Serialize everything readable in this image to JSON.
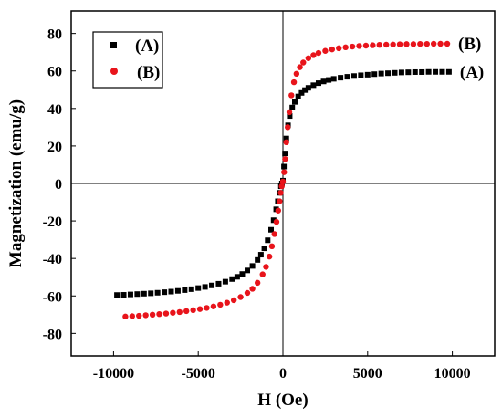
{
  "chart_data": {
    "type": "scatter",
    "xlabel": "H (Oe)",
    "ylabel": "Magnetization (emu/g)",
    "xlim": [
      -12500,
      12500
    ],
    "ylim": [
      -92,
      92
    ],
    "xticks": [
      -10000,
      -5000,
      0,
      5000,
      10000
    ],
    "yticks": [
      -80,
      -60,
      -40,
      -20,
      0,
      20,
      40,
      60,
      80
    ],
    "xtick_labels": [
      "-10000",
      "-5000",
      "0",
      "5000",
      "10000"
    ],
    "ytick_labels": [
      "-80",
      "-60",
      "-40",
      "-20",
      "0",
      "20",
      "40",
      "60",
      "80"
    ],
    "legend": {
      "placement": "top-left",
      "boxed": true
    },
    "grid": false,
    "zero_lines": true,
    "series": [
      {
        "name": "(A)",
        "color": "#000000",
        "marker": "square",
        "end_label": "(A)",
        "Ms": 59.5,
        "x": [
          -9800,
          -9400,
          -9000,
          -8600,
          -8200,
          -7800,
          -7400,
          -7000,
          -6600,
          -6200,
          -5800,
          -5400,
          -5000,
          -4600,
          -4200,
          -3800,
          -3400,
          -3000,
          -2700,
          -2400,
          -2100,
          -1800,
          -1500,
          -1300,
          -1100,
          -900,
          -700,
          -550,
          -400,
          -300,
          -200,
          -120,
          -60,
          0,
          60,
          120,
          200,
          300,
          400,
          550,
          700,
          900,
          1100,
          1300,
          1500,
          1800,
          2100,
          2400,
          2700,
          3000,
          3400,
          3800,
          4200,
          4600,
          5000,
          5400,
          5800,
          6200,
          6600,
          7000,
          7400,
          7800,
          8200,
          8600,
          9000,
          9400,
          9800
        ],
        "y": [
          -59.5,
          -59.4,
          -59.2,
          -59.0,
          -58.8,
          -58.6,
          -58.3,
          -58.0,
          -57.7,
          -57.3,
          -56.9,
          -56.4,
          -55.8,
          -55.2,
          -54.4,
          -53.5,
          -52.4,
          -51.0,
          -49.8,
          -48.3,
          -46.4,
          -44.0,
          -40.8,
          -38.0,
          -34.6,
          -30.3,
          -24.7,
          -19.6,
          -13.8,
          -9.5,
          -5.0,
          -1.5,
          0.0,
          1.5,
          9.0,
          16.0,
          24.0,
          31.0,
          36.0,
          40.5,
          43.5,
          46.4,
          48.3,
          49.8,
          51.0,
          52.4,
          53.5,
          54.4,
          55.2,
          55.8,
          56.4,
          56.9,
          57.3,
          57.7,
          58.0,
          58.3,
          58.6,
          58.8,
          59.0,
          59.2,
          59.3,
          59.4,
          59.4,
          59.5,
          59.5,
          59.5,
          59.5
        ]
      },
      {
        "name": "(B)",
        "color": "#e8141b",
        "marker": "circle",
        "end_label": "(B)",
        "Ms": 74.5,
        "x": [
          -9300,
          -8900,
          -8500,
          -8100,
          -7700,
          -7300,
          -6900,
          -6500,
          -6100,
          -5700,
          -5300,
          -4900,
          -4500,
          -4100,
          -3700,
          -3300,
          -2900,
          -2500,
          -2100,
          -1800,
          -1500,
          -1200,
          -1000,
          -800,
          -650,
          -500,
          -380,
          -280,
          -200,
          -130,
          -70,
          0,
          70,
          130,
          200,
          280,
          380,
          500,
          650,
          800,
          1000,
          1200,
          1500,
          1800,
          2100,
          2500,
          2900,
          3300,
          3700,
          4100,
          4500,
          4900,
          5300,
          5700,
          6100,
          6500,
          6900,
          7300,
          7700,
          8100,
          8500,
          8900,
          9300,
          9700
        ],
        "y": [
          -71.0,
          -70.8,
          -70.6,
          -70.3,
          -70.0,
          -69.7,
          -69.4,
          -69.0,
          -68.6,
          -68.1,
          -67.6,
          -67.0,
          -66.4,
          -65.6,
          -64.7,
          -63.6,
          -62.3,
          -60.6,
          -58.4,
          -56.2,
          -53.0,
          -48.5,
          -44.5,
          -39.0,
          -33.5,
          -27.0,
          -20.5,
          -14.5,
          -9.5,
          -5.0,
          -1.5,
          1.0,
          6.0,
          13.0,
          22.0,
          30.0,
          38.0,
          47.0,
          54.0,
          58.5,
          62.0,
          64.5,
          66.8,
          68.4,
          69.6,
          70.7,
          71.5,
          72.1,
          72.6,
          73.0,
          73.3,
          73.5,
          73.7,
          73.9,
          74.0,
          74.1,
          74.2,
          74.3,
          74.3,
          74.4,
          74.4,
          74.5,
          74.5,
          74.5
        ]
      }
    ]
  }
}
